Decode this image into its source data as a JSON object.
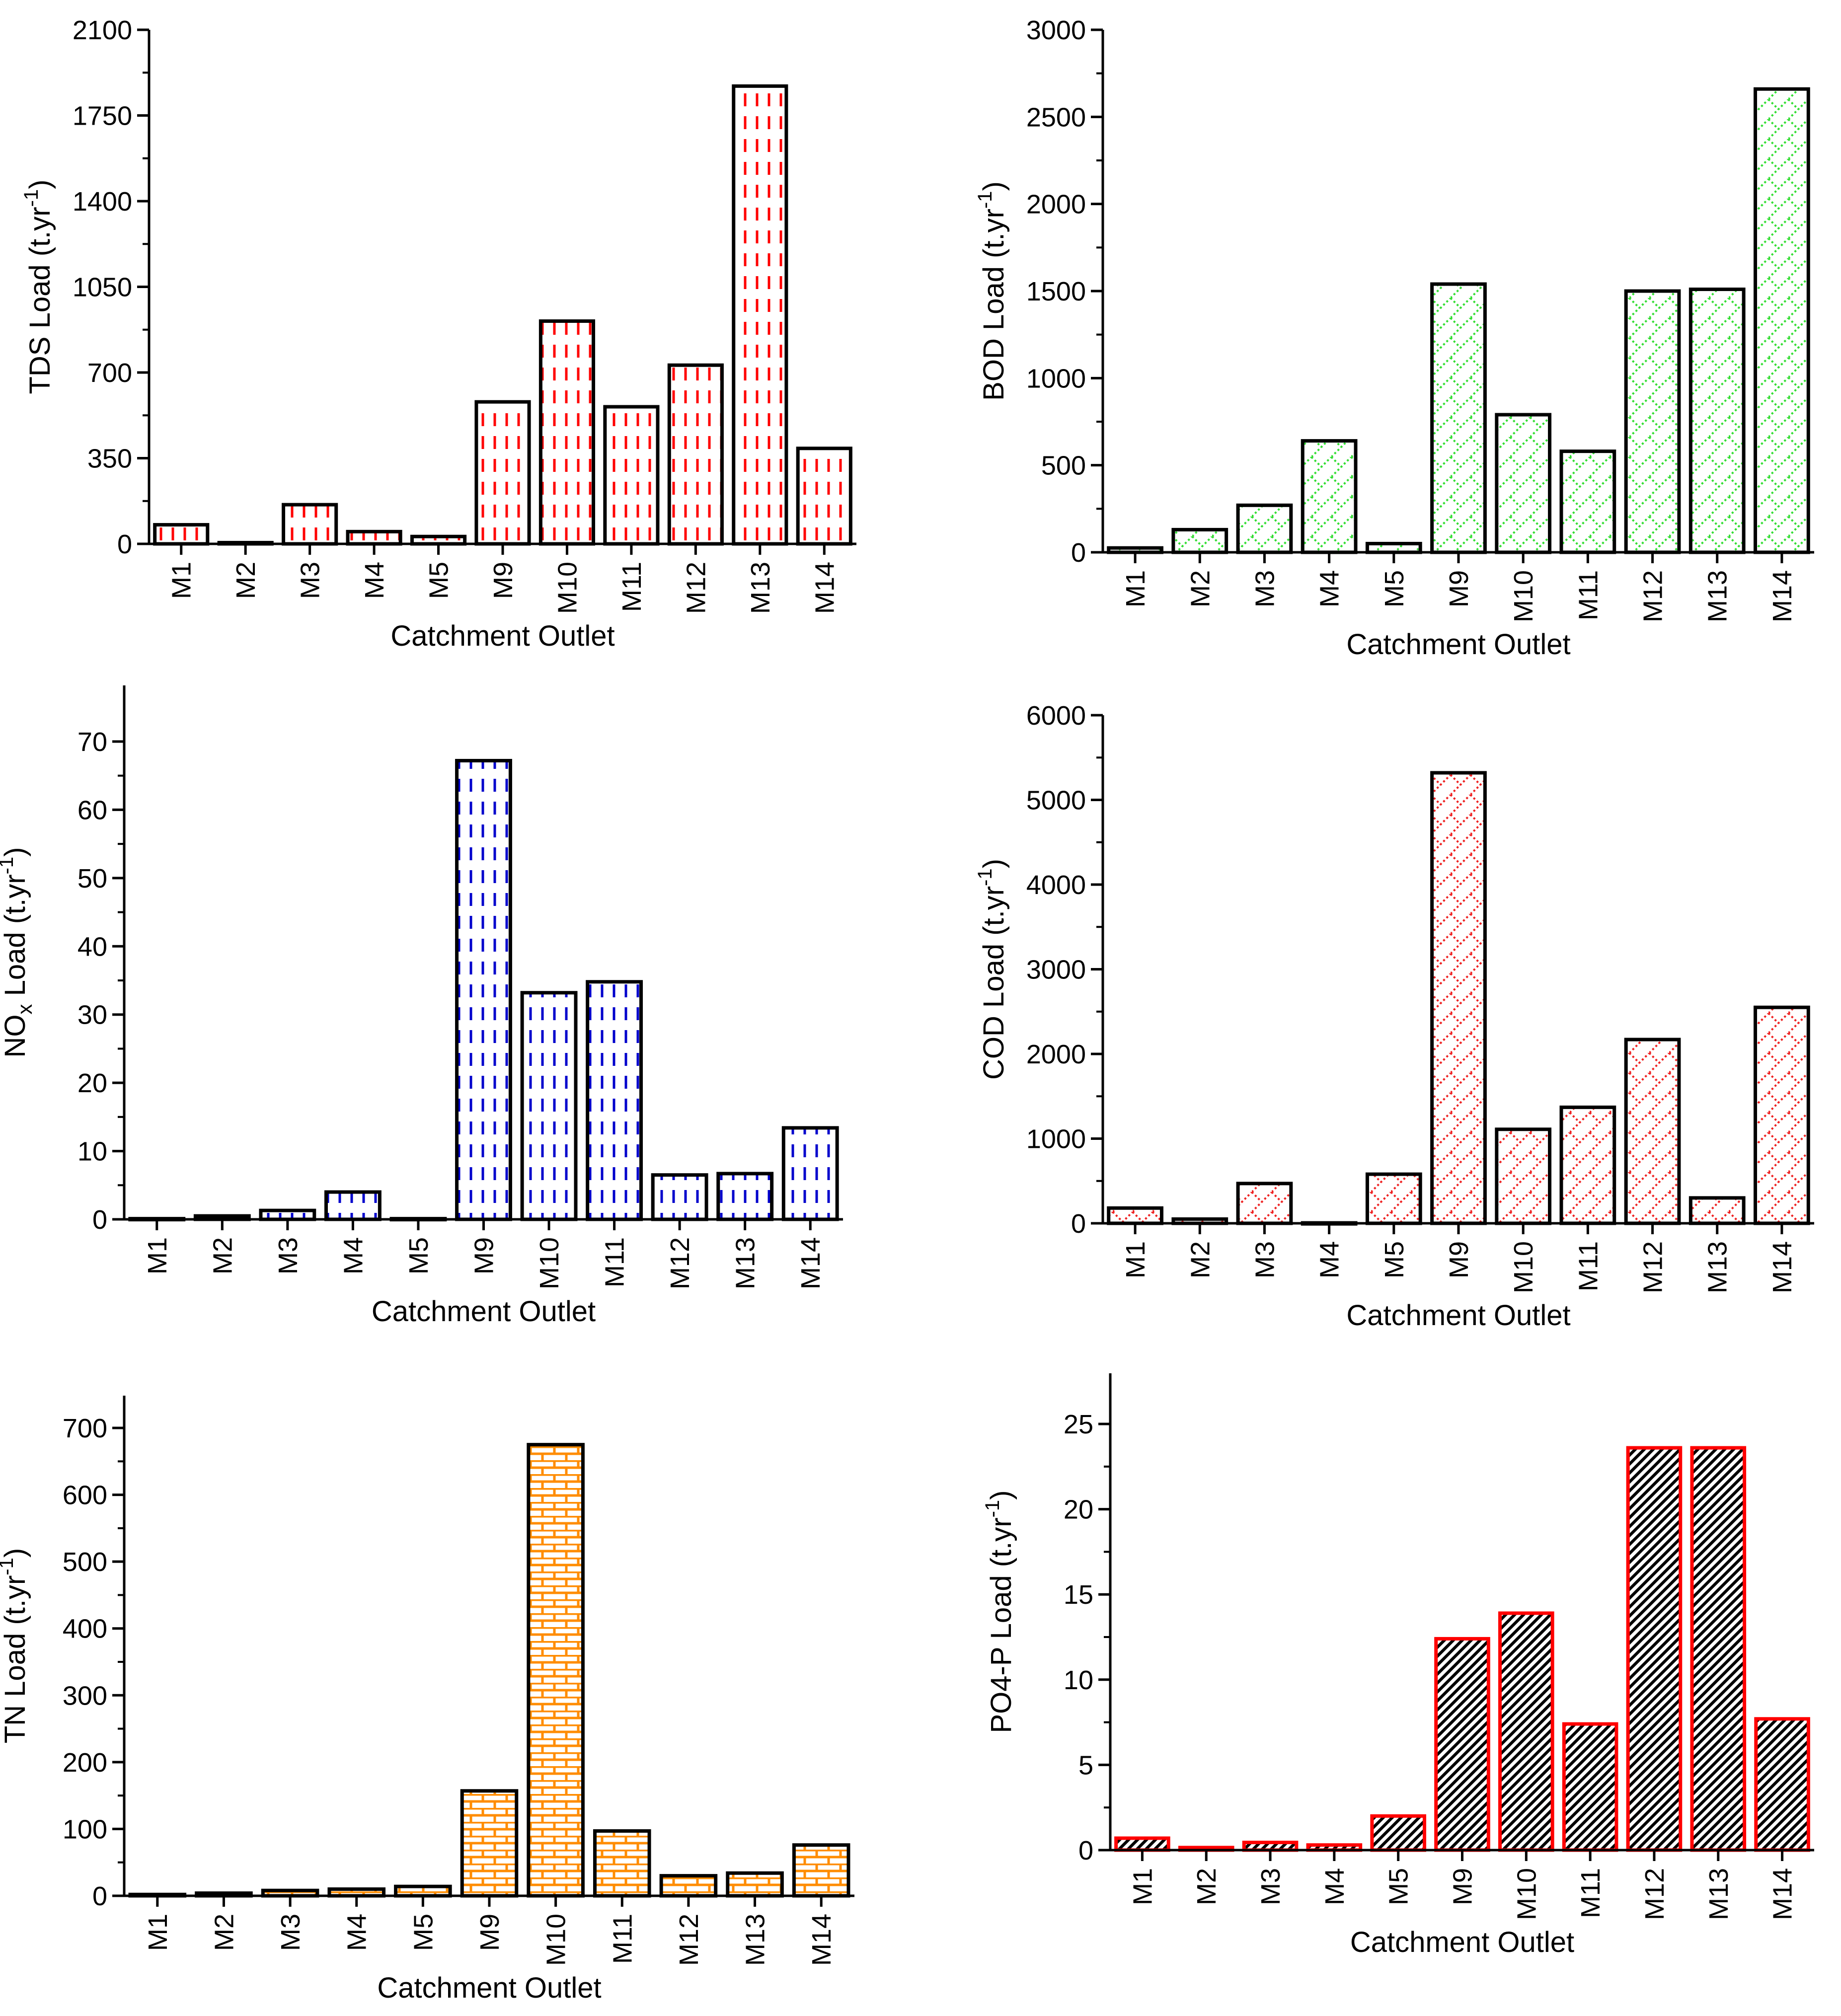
{
  "chart_data": [
    {
      "type": "bar",
      "categories": [
        "M1",
        "M2",
        "M3",
        "M4",
        "M5",
        "M9",
        "M10",
        "M11",
        "M12",
        "M13",
        "M14"
      ],
      "values": [
        78,
        5,
        160,
        50,
        30,
        580,
        910,
        560,
        730,
        1870,
        390
      ],
      "ylabel": "TDS Load (t.yr-1)",
      "ylabel_main": "TDS Load (t.yr",
      "ylabel_sup": "-1",
      "ylabel_end": ")",
      "xlabel": "Catchment Outlet",
      "ylim": [
        0,
        2100
      ],
      "yticks": [
        "0",
        "350",
        "700",
        "1050",
        "1400",
        "1750",
        "2100"
      ],
      "pattern": "dashed-vertical",
      "fill_color": "#ff0000",
      "edge_color": "#000000"
    },
    {
      "type": "bar",
      "categories": [
        "M1",
        "M2",
        "M3",
        "M4",
        "M5",
        "M9",
        "M10",
        "M11",
        "M12",
        "M13",
        "M14"
      ],
      "values": [
        25,
        130,
        270,
        640,
        50,
        1540,
        790,
        580,
        1500,
        1510,
        2660
      ],
      "ylabel": "BOD Load (t.yr-1)",
      "ylabel_main": "BOD Load (t.yr",
      "ylabel_sup": "-1",
      "ylabel_end": ")",
      "xlabel": "Catchment Outlet",
      "ylim": [
        0,
        3000
      ],
      "yticks": [
        "0",
        "500",
        "1000",
        "1500",
        "2000",
        "2500",
        "3000"
      ],
      "pattern": "crosshatch",
      "fill_color": "#33dd33",
      "edge_color": "#000000"
    },
    {
      "type": "bar",
      "categories": [
        "M1",
        "M2",
        "M3",
        "M4",
        "M5",
        "M9",
        "M10",
        "M11",
        "M12",
        "M13",
        "M14"
      ],
      "values": [
        0.1,
        0.5,
        1.3,
        4.0,
        0.1,
        67.2,
        33.2,
        34.8,
        6.5,
        6.7,
        13.4
      ],
      "ylabel": "NOx Load (t.yr-1)",
      "ylabel_main": "NO",
      "ylabel_sub": "x",
      "ylabel_mid": " Load (t.yr",
      "ylabel_sup": "-1",
      "ylabel_end": ")",
      "xlabel": "Catchment Outlet",
      "ylim": [
        0,
        75
      ],
      "yticks": [
        "0",
        "10",
        "20",
        "30",
        "40",
        "50",
        "60",
        "70"
      ],
      "ytick_values": [
        0,
        10,
        20,
        30,
        40,
        50,
        60,
        70
      ],
      "pattern": "dashed-vertical",
      "fill_color": "#0000cc",
      "edge_color": "#000000"
    },
    {
      "type": "bar",
      "categories": [
        "M1",
        "M2",
        "M3",
        "M4",
        "M5",
        "M9",
        "M10",
        "M11",
        "M12",
        "M13",
        "M14"
      ],
      "values": [
        180,
        50,
        470,
        5,
        580,
        5320,
        1110,
        1370,
        2170,
        300,
        2550
      ],
      "ylabel": "COD Load (t.yr-1)",
      "ylabel_main": "COD Load (t.yr",
      "ylabel_sup": "-1",
      "ylabel_end": ")",
      "xlabel": "Catchment Outlet",
      "ylim": [
        0,
        6000
      ],
      "yticks": [
        "0",
        "1000",
        "2000",
        "3000",
        "4000",
        "5000",
        "6000"
      ],
      "pattern": "crosshatch",
      "fill_color": "#ee2222",
      "edge_color": "#000000"
    },
    {
      "type": "bar",
      "categories": [
        "M1",
        "M2",
        "M3",
        "M4",
        "M5",
        "M9",
        "M10",
        "M11",
        "M12",
        "M13",
        "M14"
      ],
      "values": [
        2,
        4,
        8,
        10,
        14,
        157,
        675,
        97,
        30,
        34,
        76
      ],
      "ylabel": "TN Load (t.yr-1)",
      "ylabel_main": "TN Load (t.yr",
      "ylabel_sup": "-1",
      "ylabel_end": ")",
      "xlabel": "Catchment Outlet",
      "ylim": [
        0,
        750
      ],
      "yticks": [
        "0",
        "100",
        "200",
        "300",
        "400",
        "500",
        "600",
        "700"
      ],
      "ytick_values": [
        0,
        100,
        200,
        300,
        400,
        500,
        600,
        700
      ],
      "pattern": "brick",
      "fill_color": "#ff8c00",
      "edge_color": "#000000"
    },
    {
      "type": "bar",
      "categories": [
        "M1",
        "M2",
        "M3",
        "M4",
        "M5",
        "M9",
        "M10",
        "M11",
        "M12",
        "M13",
        "M14"
      ],
      "values": [
        0.7,
        0.15,
        0.45,
        0.3,
        2.0,
        12.4,
        13.9,
        7.4,
        23.6,
        23.6,
        7.7
      ],
      "ylabel": "PO4-P Load (t.yr-1)",
      "ylabel_main": "PO4-P Load (t.yr",
      "ylabel_sup": "-1",
      "ylabel_end": ")",
      "xlabel": "Catchment Outlet",
      "ylim": [
        0,
        27.5
      ],
      "yticks": [
        "0",
        "5",
        "10",
        "15",
        "20",
        "25"
      ],
      "ytick_values": [
        0,
        5,
        10,
        15,
        20,
        25
      ],
      "pattern": "diagonal",
      "fill_color": "#000000",
      "edge_color": "#ff0000"
    }
  ]
}
